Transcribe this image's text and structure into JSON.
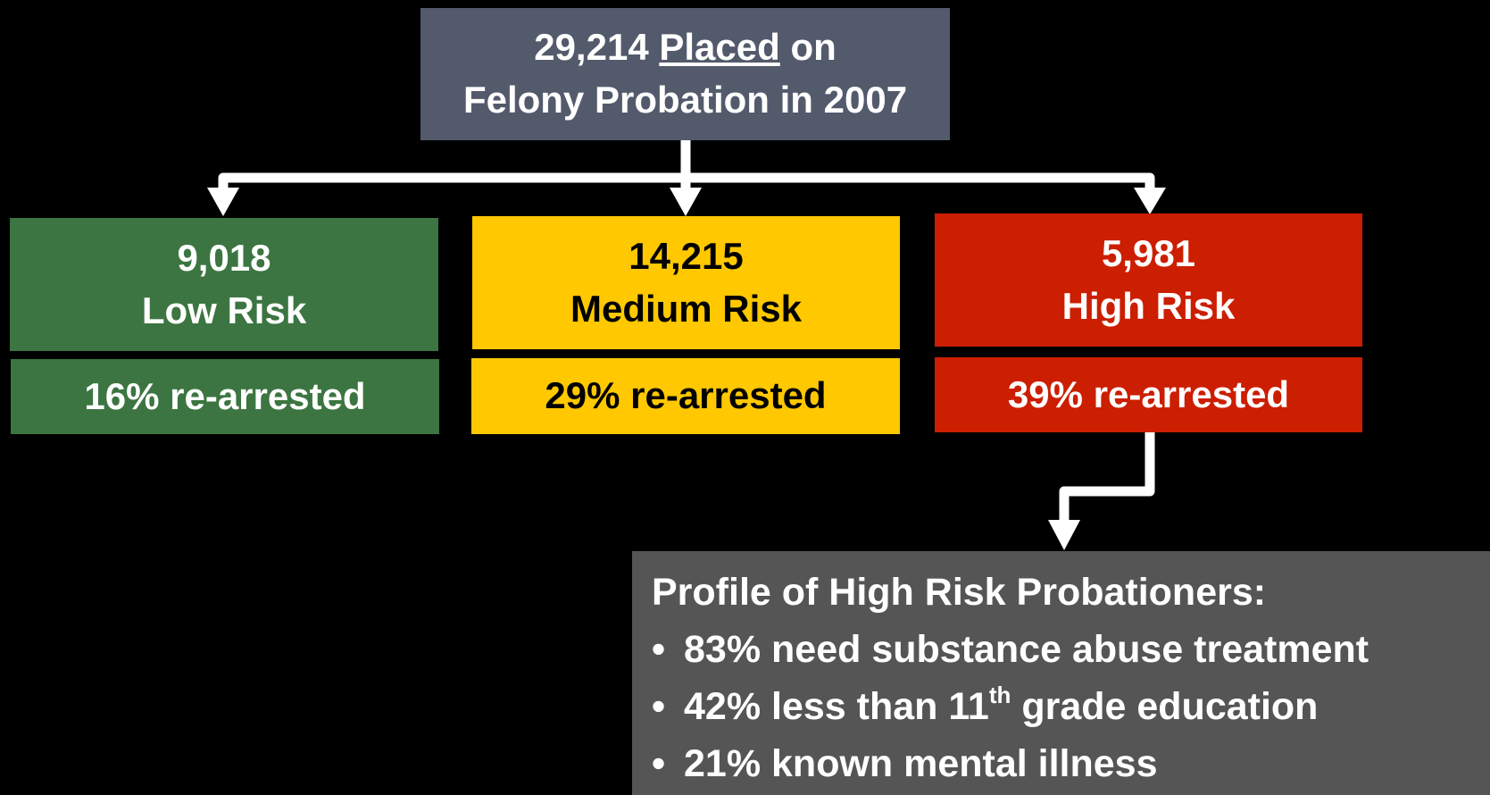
{
  "header": {
    "count": "29,214",
    "verb": "Placed",
    "rest": "on",
    "line2": "Felony Probation in 2007"
  },
  "groups": [
    {
      "count": "9,018",
      "label": "Low Risk",
      "rate": "16% re-arrested"
    },
    {
      "count": "14,215",
      "label": "Medium Risk",
      "rate": "29% re-arrested"
    },
    {
      "count": "5,981",
      "label": "High Risk",
      "rate": "39% re-arrested"
    }
  ],
  "profile": {
    "title": "Profile of High Risk Probationers:",
    "bullets": [
      {
        "text": "83% need substance abuse treatment"
      },
      {
        "text": "42% less than 11",
        "sup": "th",
        "after": "grade education"
      },
      {
        "text": "21% known mental illness"
      }
    ]
  }
}
